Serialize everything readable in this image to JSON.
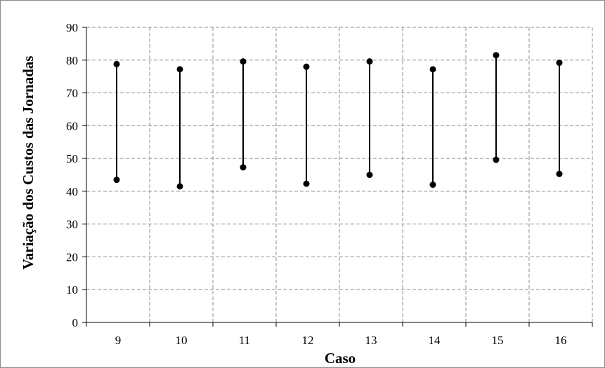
{
  "chart_data": {
    "type": "range",
    "title": "",
    "xlabel": "Caso",
    "ylabel": "Variação dos Custos das Jornadas",
    "categories": [
      "9",
      "10",
      "11",
      "12",
      "13",
      "14",
      "15",
      "16"
    ],
    "low": [
      43.5,
      41.5,
      47.3,
      42.3,
      45.0,
      42.0,
      49.6,
      45.3
    ],
    "high": [
      78.8,
      77.2,
      79.6,
      78.0,
      79.6,
      77.2,
      81.5,
      79.2
    ],
    "ylim": [
      0,
      90
    ],
    "yticks": [
      0,
      10,
      20,
      30,
      40,
      50,
      60,
      70,
      80,
      90
    ],
    "grid": true,
    "grid_style": "dashed",
    "line_color": "#000000",
    "marker_color": "#000000",
    "grid_color": "#8c8c8c"
  }
}
